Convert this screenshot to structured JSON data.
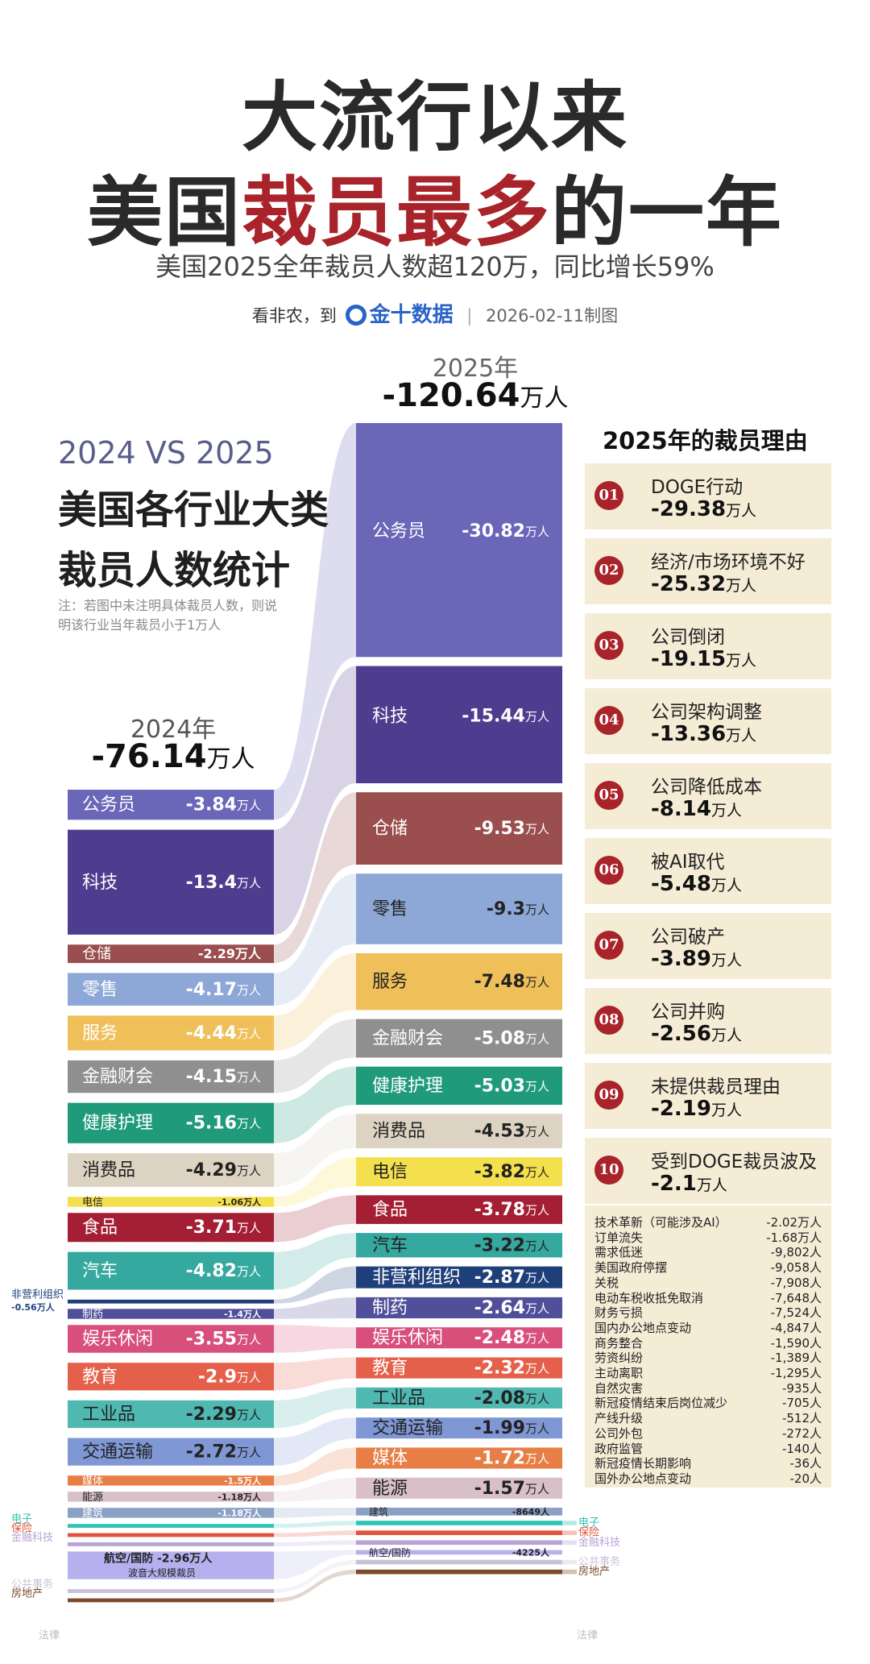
{
  "header": {
    "title_line1": "大流行以来",
    "title_line2_a": "美国",
    "title_line2_hl": "裁员最多",
    "title_line2_b": "的一年",
    "subtitle": "美国2025全年裁员人数超120万，同比增长59%",
    "credit_prefix": "看非农，到",
    "brand": "金十数据",
    "date": "2026-02-11制图"
  },
  "left_panel": {
    "vs": "2024 VS 2025",
    "title_line1": "美国各行业大类",
    "title_line2": "裁员人数统计",
    "note_line1": "注：若图中未注明具体裁员人数，则说",
    "note_line2": "明该行业当年裁员小于1万人"
  },
  "chart_data": {
    "type": "bar",
    "unit": "万人",
    "y2024": {
      "label": "2024年",
      "total": "-76.14",
      "unit": "万人"
    },
    "y2025": {
      "label": "2025年",
      "total": "-120.64",
      "unit": "万人"
    },
    "bars2024": [
      {
        "name": "公务员",
        "value": "-3.84",
        "unit": "万人",
        "color": "#6a66b8",
        "size": "l"
      },
      {
        "name": "科技",
        "value": "-13.4",
        "unit": "万人",
        "color": "#4e3d8f",
        "size": "l"
      },
      {
        "name": "仓储",
        "value": "-2.29",
        "unit": "万人",
        "color": "#9a4e4e",
        "size": "s"
      },
      {
        "name": "零售",
        "value": "-4.17",
        "unit": "万人",
        "color": "#8da7d6",
        "size": "l"
      },
      {
        "name": "服务",
        "value": "-4.44",
        "unit": "万人",
        "color": "#efbf59",
        "size": "l"
      },
      {
        "name": "金融财会",
        "value": "-4.15",
        "unit": "万人",
        "color": "#8f8f8f",
        "size": "l"
      },
      {
        "name": "健康护理",
        "value": "-5.16",
        "unit": "万人",
        "color": "#1f9a7a",
        "size": "l"
      },
      {
        "name": "消费品",
        "value": "-4.29",
        "unit": "万人",
        "color": "#dcd3c2",
        "size": "l",
        "dark": true
      },
      {
        "name": "电信",
        "value": "-1.06",
        "unit": "万人",
        "color": "#f4e04d",
        "size": "xs",
        "dark": true
      },
      {
        "name": "食品",
        "value": "-3.71",
        "unit": "万人",
        "color": "#a41e34",
        "size": "l"
      },
      {
        "name": "汽车",
        "value": "-4.82",
        "unit": "万人",
        "color": "#35a8a0",
        "size": "l"
      },
      {
        "name": "非营利组织",
        "value": "-0.56",
        "unit": "万人",
        "color": "#1f3f7a",
        "size": "tiny",
        "outside": true
      },
      {
        "name": "制药",
        "value": "-1.4",
        "unit": "万人",
        "color": "#4f4f9a",
        "size": "xs"
      },
      {
        "name": "娱乐休闲",
        "value": "-3.55",
        "unit": "万人",
        "color": "#d94f7c",
        "size": "l"
      },
      {
        "name": "教育",
        "value": "-2.9",
        "unit": "万人",
        "color": "#e5604a",
        "size": "l"
      },
      {
        "name": "工业品",
        "value": "-2.29",
        "unit": "万人",
        "color": "#4fb8b0",
        "size": "l",
        "dark": true
      },
      {
        "name": "交通运输",
        "value": "-2.72",
        "unit": "万人",
        "color": "#7f97d4",
        "size": "l",
        "dark": true
      },
      {
        "name": "媒体",
        "value": "-1.5",
        "unit": "万人",
        "color": "#e77e45",
        "size": "xs"
      },
      {
        "name": "能源",
        "value": "-1.18",
        "unit": "万人",
        "color": "#d9c0c8",
        "size": "xs",
        "dark": true
      },
      {
        "name": "建筑",
        "value": "-1.18",
        "unit": "万人",
        "color": "#8aa0c4",
        "size": "xs"
      },
      {
        "name": "电子",
        "value": "",
        "unit": "",
        "color": "#2ec4b6",
        "size": "tiny",
        "outside": true
      },
      {
        "name": "保险",
        "value": "",
        "unit": "",
        "color": "#e0533d",
        "size": "tiny",
        "outside": true
      },
      {
        "name": "金融科技",
        "value": "",
        "unit": "",
        "color": "#b8a3d6",
        "size": "tiny",
        "outside": true
      },
      {
        "name": "航空/国防",
        "value": "-2.96",
        "unit": "万人",
        "color": "#b6b0ef",
        "size": "l",
        "dark": true,
        "sublabel": "波音大规模裁员"
      },
      {
        "name": "公共事务",
        "value": "",
        "unit": "",
        "color": "#c7c2d8",
        "size": "tiny",
        "outside": true
      },
      {
        "name": "房地产",
        "value": "",
        "unit": "",
        "color": "#7a4a2a",
        "size": "tiny",
        "outside": true
      }
    ],
    "bars2025": [
      {
        "name": "公务员",
        "value": "-30.82",
        "unit": "万人",
        "color": "#6a66b8"
      },
      {
        "name": "科技",
        "value": "-15.44",
        "unit": "万人",
        "color": "#4e3d8f"
      },
      {
        "name": "仓储",
        "value": "-9.53",
        "unit": "万人",
        "color": "#9a4e4e"
      },
      {
        "name": "零售",
        "value": "-9.3",
        "unit": "万人",
        "color": "#8da7d6",
        "dark": true
      },
      {
        "name": "服务",
        "value": "-7.48",
        "unit": "万人",
        "color": "#efbf59",
        "dark": true
      },
      {
        "name": "金融财会",
        "value": "-5.08",
        "unit": "万人",
        "color": "#8f8f8f"
      },
      {
        "name": "健康护理",
        "value": "-5.03",
        "unit": "万人",
        "color": "#1f9a7a"
      },
      {
        "name": "消费品",
        "value": "-4.53",
        "unit": "万人",
        "color": "#dcd3c2",
        "dark": true
      },
      {
        "name": "电信",
        "value": "-3.82",
        "unit": "万人",
        "color": "#f4e04d",
        "dark": true
      },
      {
        "name": "食品",
        "value": "-3.78",
        "unit": "万人",
        "color": "#a41e34"
      },
      {
        "name": "汽车",
        "value": "-3.22",
        "unit": "万人",
        "color": "#35a8a0",
        "dark": true
      },
      {
        "name": "非营利组织",
        "value": "-2.87",
        "unit": "万人",
        "color": "#1f3f7a"
      },
      {
        "name": "制药",
        "value": "-2.64",
        "unit": "万人",
        "color": "#4f4f9a"
      },
      {
        "name": "娱乐休闲",
        "value": "-2.48",
        "unit": "万人",
        "color": "#d94f7c"
      },
      {
        "name": "教育",
        "value": "-2.32",
        "unit": "万人",
        "color": "#e5604a"
      },
      {
        "name": "工业品",
        "value": "-2.08",
        "unit": "万人",
        "color": "#4fb8b0",
        "dark": true
      },
      {
        "name": "交通运输",
        "value": "-1.99",
        "unit": "万人",
        "color": "#7f97d4",
        "dark": true
      },
      {
        "name": "媒体",
        "value": "-1.72",
        "unit": "万人",
        "color": "#e77e45"
      },
      {
        "name": "能源",
        "value": "-1.57",
        "unit": "万人",
        "color": "#d9c0c8",
        "dark": true
      },
      {
        "name": "建筑",
        "value": "-8649",
        "unit": "人",
        "color": "#8aa0c4"
      },
      {
        "name": "电子",
        "value": "",
        "unit": "",
        "color": "#2ec4b6"
      },
      {
        "name": "保险",
        "value": "",
        "unit": "",
        "color": "#e0533d"
      },
      {
        "name": "金融科技",
        "value": "",
        "unit": "",
        "color": "#b8a3d6"
      },
      {
        "name": "航空/国防",
        "value": "-4225",
        "unit": "人",
        "color": "#b6b0ef"
      },
      {
        "name": "公共事务",
        "value": "",
        "unit": "",
        "color": "#c7c2d8"
      },
      {
        "name": "房地产",
        "value": "",
        "unit": "",
        "color": "#7a4a2a"
      }
    ],
    "extra_labels": [
      "法律"
    ]
  },
  "reasons": {
    "title": "2025年的裁员理由",
    "items": [
      {
        "num": "01",
        "label": "DOGE行动",
        "value": "-29.38",
        "unit": "万人"
      },
      {
        "num": "02",
        "label": "经济/市场环境不好",
        "value": "-25.32",
        "unit": "万人"
      },
      {
        "num": "03",
        "label": "公司倒闭",
        "value": "-19.15",
        "unit": "万人"
      },
      {
        "num": "04",
        "label": "公司架构调整",
        "value": "-13.36",
        "unit": "万人"
      },
      {
        "num": "05",
        "label": "公司降低成本",
        "value": "-8.14",
        "unit": "万人"
      },
      {
        "num": "06",
        "label": "被AI取代",
        "value": "-5.48",
        "unit": "万人"
      },
      {
        "num": "07",
        "label": "公司破产",
        "value": "-3.89",
        "unit": "万人"
      },
      {
        "num": "08",
        "label": "公司并购",
        "value": "-2.56",
        "unit": "万人"
      },
      {
        "num": "09",
        "label": "未提供裁员理由",
        "value": "-2.19",
        "unit": "万人"
      },
      {
        "num": "10",
        "label": "受到DOGE裁员波及",
        "value": "-2.1",
        "unit": "万人"
      }
    ],
    "others": [
      {
        "label": "技术革新（可能涉及AI）",
        "value": "-2.02万人"
      },
      {
        "label": "订单流失",
        "value": "-1.68万人"
      },
      {
        "label": "需求低迷",
        "value": "-9,802人"
      },
      {
        "label": "美国政府停摆",
        "value": "-9,058人"
      },
      {
        "label": "关税",
        "value": "-7,908人"
      },
      {
        "label": "电动车税收抵免取消",
        "value": "-7,648人"
      },
      {
        "label": "财务亏损",
        "value": "-7,524人"
      },
      {
        "label": "国内办公地点变动",
        "value": "-4,847人"
      },
      {
        "label": "商务整合",
        "value": "-1,590人"
      },
      {
        "label": "劳资纠纷",
        "value": "-1,389人"
      },
      {
        "label": "主动离职",
        "value": "-1,295人"
      },
      {
        "label": "自然灾害",
        "value": "-935人"
      },
      {
        "label": "新冠疫情结束后岗位减少",
        "value": "-705人"
      },
      {
        "label": "产线升级",
        "value": "-512人"
      },
      {
        "label": "公司外包",
        "value": "-272人"
      },
      {
        "label": "政府监管",
        "value": "-140人"
      },
      {
        "label": "新冠疫情长期影响",
        "value": "-36人"
      },
      {
        "label": "国外办公地点变动",
        "value": "-20人"
      }
    ]
  }
}
